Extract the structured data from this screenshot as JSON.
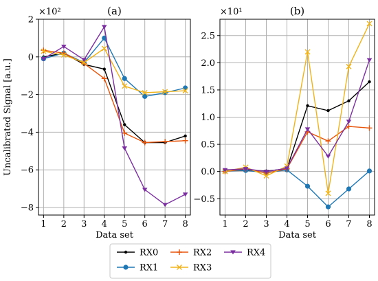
{
  "chart_data": [
    {
      "type": "line",
      "title": "(a)",
      "ylabel": "Uncalibrated Signal [a.u.]",
      "xlabel": "Data set",
      "scale_note": "×10²",
      "x": [
        1,
        2,
        3,
        4,
        5,
        6,
        7,
        8
      ],
      "xticks": [
        "1",
        "2",
        "3",
        "4",
        "5",
        "6",
        "7",
        "8"
      ],
      "ylim": [
        -8.4,
        2.0
      ],
      "yticks": [
        "2",
        "0",
        "−2",
        "−4",
        "−6",
        "−8"
      ],
      "ytick_values": [
        2,
        0,
        -2,
        -4,
        -6,
        -8
      ],
      "grid": true,
      "series": [
        {
          "name": "RX0",
          "values": [
            0.0,
            0.2,
            -0.4,
            -0.65,
            -3.6,
            -4.55,
            -4.55,
            -4.2
          ]
        },
        {
          "name": "RX1",
          "values": [
            -0.1,
            0.2,
            -0.3,
            1.0,
            -1.15,
            -2.1,
            -1.9,
            -1.65
          ]
        },
        {
          "name": "RX2",
          "values": [
            0.35,
            0.2,
            -0.35,
            -1.15,
            -4.05,
            -4.55,
            -4.5,
            -4.45
          ]
        },
        {
          "name": "RX3",
          "values": [
            0.3,
            0.1,
            -0.3,
            0.45,
            -1.55,
            -1.9,
            -1.85,
            -1.8
          ]
        },
        {
          "name": "RX4",
          "values": [
            -0.1,
            0.55,
            -0.15,
            1.6,
            -4.85,
            -7.05,
            -7.85,
            -7.3
          ]
        }
      ]
    },
    {
      "type": "line",
      "title": "(b)",
      "ylabel": "",
      "xlabel": "Data set",
      "scale_note": "×10¹",
      "x": [
        1,
        2,
        3,
        4,
        5,
        6,
        7,
        8
      ],
      "xticks": [
        "1",
        "2",
        "3",
        "4",
        "5",
        "6",
        "7",
        "8"
      ],
      "ylim": [
        -0.8,
        2.8
      ],
      "yticks": [
        "2.5",
        "2.0",
        "1.5",
        "1.0",
        "0.5",
        "0.0",
        "−0.5"
      ],
      "ytick_values": [
        2.5,
        2.0,
        1.5,
        1.0,
        0.5,
        0.0,
        -0.5
      ],
      "grid": true,
      "series": [
        {
          "name": "RX0",
          "values": [
            0.02,
            0.03,
            0.01,
            0.05,
            1.21,
            1.12,
            1.3,
            1.65
          ]
        },
        {
          "name": "RX1",
          "values": [
            0.01,
            0.02,
            -0.02,
            0.03,
            -0.27,
            -0.65,
            -0.32,
            0.01
          ]
        },
        {
          "name": "RX2",
          "values": [
            0.0,
            0.05,
            -0.03,
            0.05,
            0.73,
            0.56,
            0.83,
            0.8
          ]
        },
        {
          "name": "RX3",
          "values": [
            0.0,
            0.08,
            -0.08,
            0.1,
            2.2,
            -0.4,
            1.93,
            2.72
          ]
        },
        {
          "name": "RX4",
          "values": [
            0.03,
            0.05,
            0.0,
            0.06,
            0.78,
            0.28,
            0.92,
            2.05
          ]
        }
      ]
    }
  ],
  "legend": {
    "placement": "bottom-center",
    "entries": [
      {
        "name": "RX0",
        "color": "#000000",
        "marker": "dot"
      },
      {
        "name": "RX1",
        "color": "#1f77b4",
        "marker": "circle"
      },
      {
        "name": "RX2",
        "color": "#e8540a",
        "marker": "plus"
      },
      {
        "name": "RX3",
        "color": "#f0b41a",
        "marker": "x"
      },
      {
        "name": "RX4",
        "color": "#7b2ea0",
        "marker": "tri"
      }
    ]
  }
}
